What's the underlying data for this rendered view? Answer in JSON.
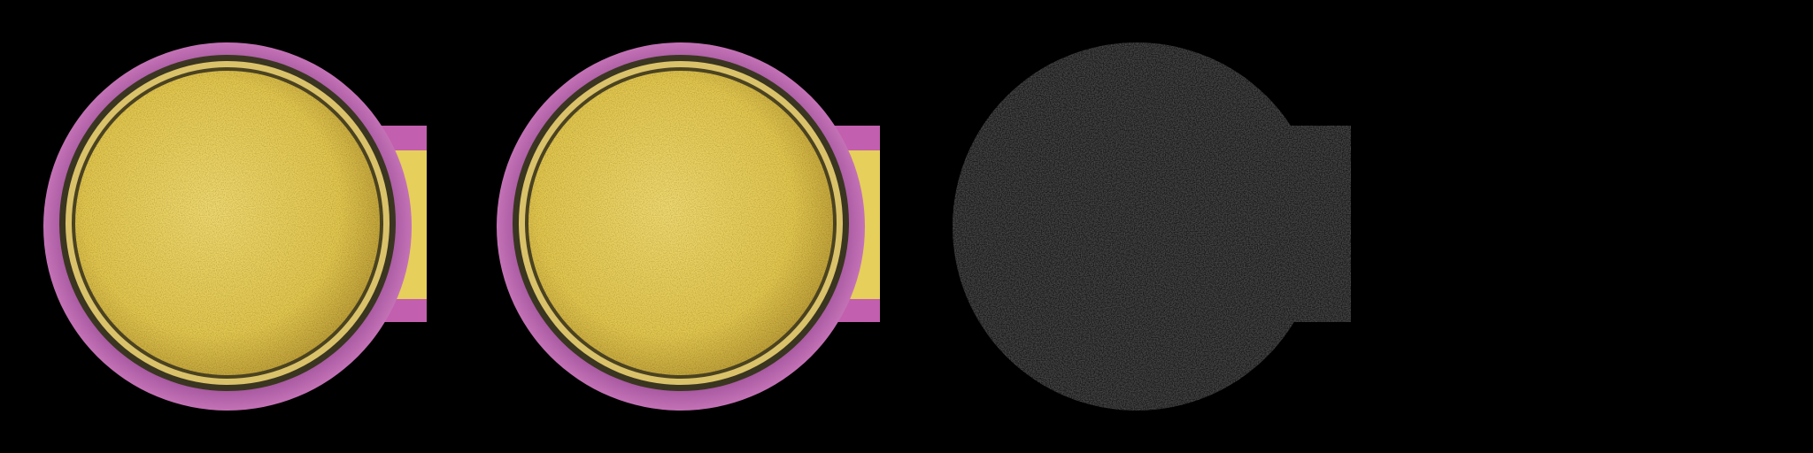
{
  "panels": [
    {
      "id": "panel-1",
      "kind": "color-micrograph",
      "colors": {
        "background": "#000000",
        "ring": "#b361a8",
        "ring_dark": "#7d3f78",
        "pad": "#e9d35a",
        "pad_dark": "#a8902c",
        "rim": "#3a3520",
        "tab": "#c25fae"
      }
    },
    {
      "id": "panel-2",
      "kind": "color-micrograph",
      "colors": {
        "background": "#000000",
        "ring": "#b361a8",
        "ring_dark": "#7d3f78",
        "pad": "#e9d35a",
        "pad_dark": "#a8902c",
        "rim": "#3a3520",
        "tab": "#c25fae"
      }
    },
    {
      "id": "panel-3",
      "kind": "grayscale-mask",
      "colors": {
        "background": "#000000",
        "fill": "#1c1c1c",
        "speckle": "#2e2e2e"
      }
    },
    {
      "id": "panel-4",
      "kind": "empty-black",
      "colors": {
        "background": "#000000"
      }
    }
  ]
}
